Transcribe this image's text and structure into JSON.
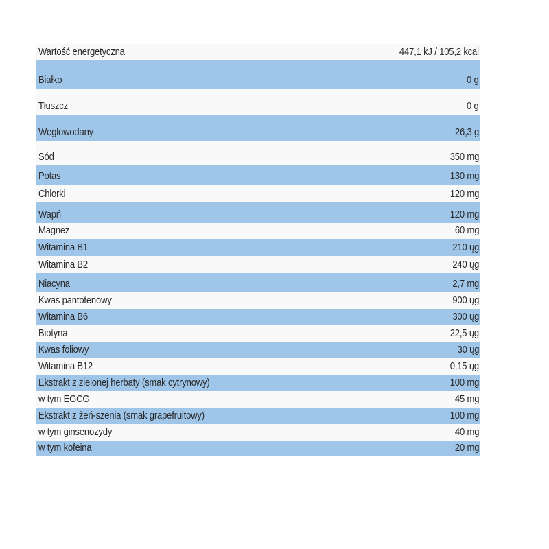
{
  "rows": [
    {
      "label": "Wartość energetyczna",
      "value": "447,1 kJ / 105,2 kcal"
    },
    {
      "label": "Białko",
      "value": "0 g"
    },
    {
      "label": "Tłuszcz",
      "value": "0 g"
    },
    {
      "label": "Węglowodany",
      "value": "26,3 g"
    },
    {
      "label": "Sód",
      "value": "350 mg"
    },
    {
      "label": "Potas",
      "value": "130 mg"
    },
    {
      "label": "Chlorki",
      "value": "120 mg"
    },
    {
      "label": "Wapń",
      "value": "120 mg"
    },
    {
      "label": "Magnez",
      "value": "60 mg"
    },
    {
      "label": "Witamina B1",
      "value": "210 ųg"
    },
    {
      "label": "Witamina B2",
      "value": "240 ųg"
    },
    {
      "label": "Niacyna",
      "value": "2,7 mg"
    },
    {
      "label": "Kwas pantotenowy",
      "value": "900 ųg"
    },
    {
      "label": "Witamina B6",
      "value": "300 ųg"
    },
    {
      "label": "Biotyna",
      "value": "22,5 ųg"
    },
    {
      "label": "Kwas foliowy",
      "value": "30 ųg"
    },
    {
      "label": "Witamina B12",
      "value": "0,15 ųg"
    },
    {
      "label": "Ekstrakt z zielonej herbaty (smak cytrynowy)",
      "value": "100 mg"
    },
    {
      "label": "w tym EGCG",
      "value": "45 mg"
    },
    {
      "label": "Ekstrakt z żeń-szenia (smak grapefruitowy)",
      "value": "100 mg"
    },
    {
      "label": "w tym ginsenozydy",
      "value": "40 mg"
    },
    {
      "label": "w tym kofeina",
      "value": "20 mg"
    }
  ],
  "colors": {
    "stripe": "#9fc5e8",
    "row": "#f9f9f9",
    "text": "#2a2a2a"
  }
}
